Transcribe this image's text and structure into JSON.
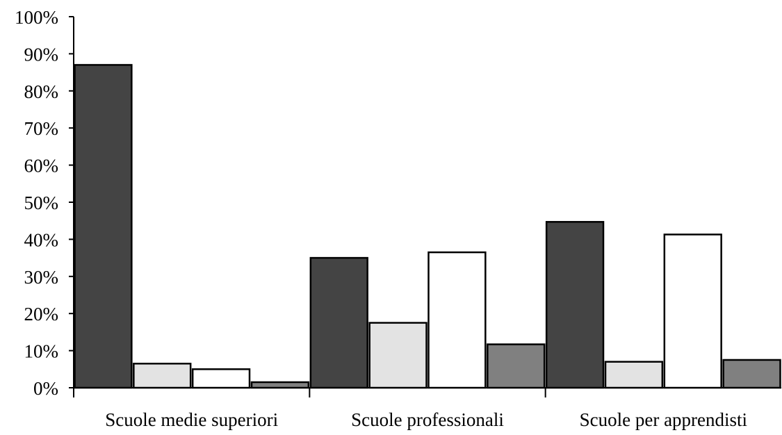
{
  "chart_data": {
    "type": "bar",
    "categories": [
      "Scuole medie superiori",
      "Scuole professionali",
      "Scuole per apprendisti"
    ],
    "series": [
      {
        "values": [
          87,
          35,
          44.7
        ],
        "color": "#444444"
      },
      {
        "values": [
          6.5,
          17.5,
          7
        ],
        "color": "#e3e3e3"
      },
      {
        "values": [
          5,
          36.5,
          41.3
        ],
        "color": "#ffffff"
      },
      {
        "values": [
          1.5,
          11.7,
          7.5
        ],
        "color": "#808080"
      }
    ],
    "y_ticks": [
      "0%",
      "10%",
      "20%",
      "30%",
      "40%",
      "50%",
      "60%",
      "70%",
      "80%",
      "90%",
      "100%"
    ],
    "ylim": [
      0,
      100
    ],
    "grid": false,
    "legend": "none"
  }
}
